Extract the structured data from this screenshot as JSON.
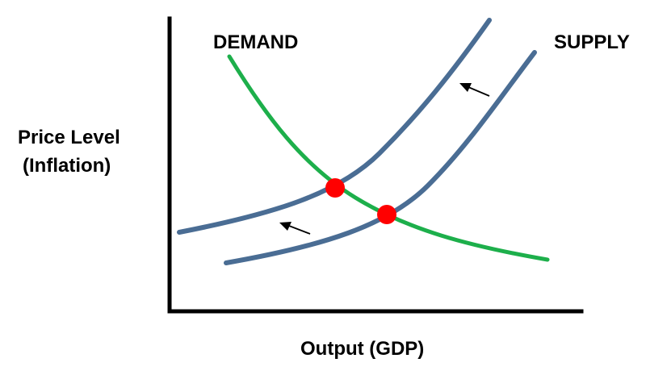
{
  "labels": {
    "demand": "DEMAND",
    "supply": "SUPPLY",
    "y_axis_line1": "Price Level",
    "y_axis_line2": "(Inflation)",
    "x_axis": "Output (GDP)"
  },
  "colors": {
    "demand_curve": "#1DAF4B",
    "supply_curve": "#4A6D94",
    "equilibrium_point": "#FF0000",
    "axes": "#000000",
    "arrows": "#000000"
  },
  "curves": [
    {
      "name": "demand",
      "icon": "downward-sloping-curve"
    },
    {
      "name": "supply-original",
      "icon": "upward-sloping-curve"
    },
    {
      "name": "supply-shifted",
      "icon": "upward-sloping-curve"
    }
  ],
  "equilibrium_points": 2,
  "shift_arrows": 2
}
